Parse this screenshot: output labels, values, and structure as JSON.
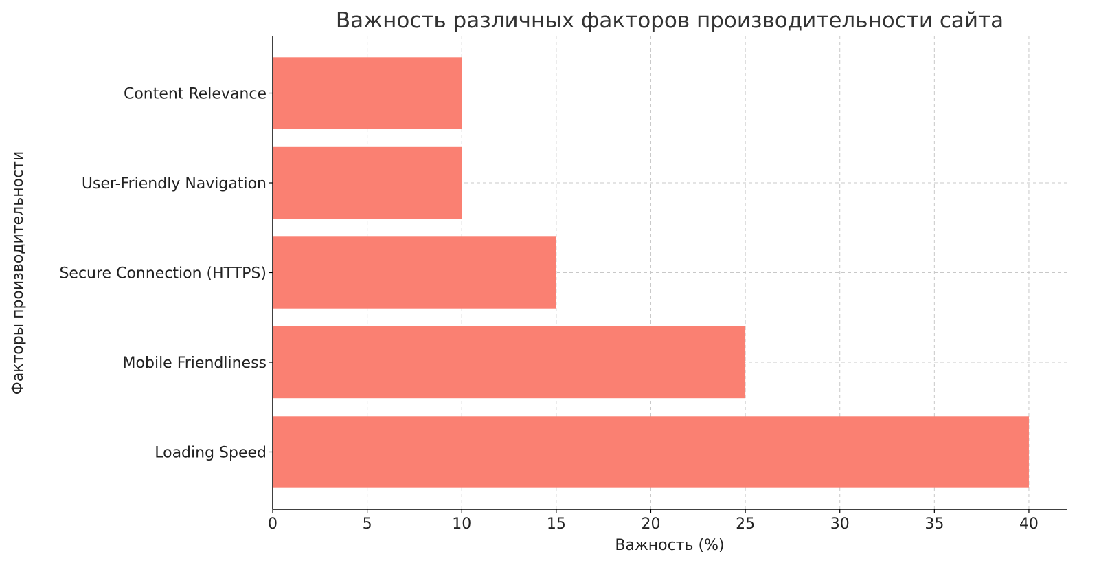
{
  "chart_data": {
    "type": "bar",
    "orientation": "horizontal",
    "title": "Важность различных факторов производительности сайта",
    "xlabel": "Важность (%)",
    "ylabel": "Факторы производительности",
    "categories": [
      "Loading Speed",
      "Mobile Friendliness",
      "Secure Connection (HTTPS)",
      "User-Friendly Navigation",
      "Content Relevance"
    ],
    "values": [
      40,
      25,
      15,
      10,
      10
    ],
    "xlim": [
      0,
      42
    ],
    "xticks": [
      0,
      5,
      10,
      15,
      20,
      25,
      30,
      35,
      40
    ],
    "grid": true,
    "bar_color": "#FA8072"
  }
}
